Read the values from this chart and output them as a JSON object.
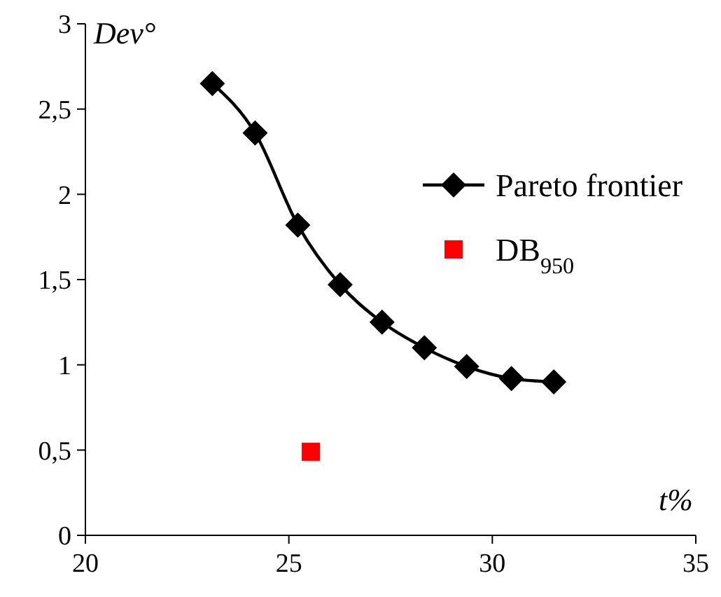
{
  "chart_data": {
    "type": "line",
    "xlabel": "t%",
    "ylabel": "Dev°",
    "xlim": [
      20,
      35
    ],
    "xticks": [
      20,
      25,
      30,
      35
    ],
    "ylim": [
      0,
      3
    ],
    "yticks": [
      0,
      {
        "value": 0.5,
        "label": "0,5"
      },
      1,
      {
        "value": 1.5,
        "label": "1,5"
      },
      2,
      {
        "value": 2.5,
        "label": "2,5"
      },
      3
    ],
    "grid": false,
    "legend": "top right",
    "series": [
      {
        "name": "Pareto frontier",
        "marker": "diamond",
        "color": "#000000",
        "x": [
          23.12,
          24.17,
          25.22,
          26.26,
          27.29,
          28.33,
          29.37,
          30.47,
          31.51
        ],
        "values": [
          2.65,
          2.36,
          1.82,
          1.47,
          1.25,
          1.1,
          0.99,
          0.92,
          0.9
        ]
      },
      {
        "name": "DB$_{950}$",
        "type": "scatter",
        "marker": "square",
        "color": "#ff0000",
        "x": [
          25.54
        ],
        "values": [
          0.49
        ]
      }
    ]
  }
}
